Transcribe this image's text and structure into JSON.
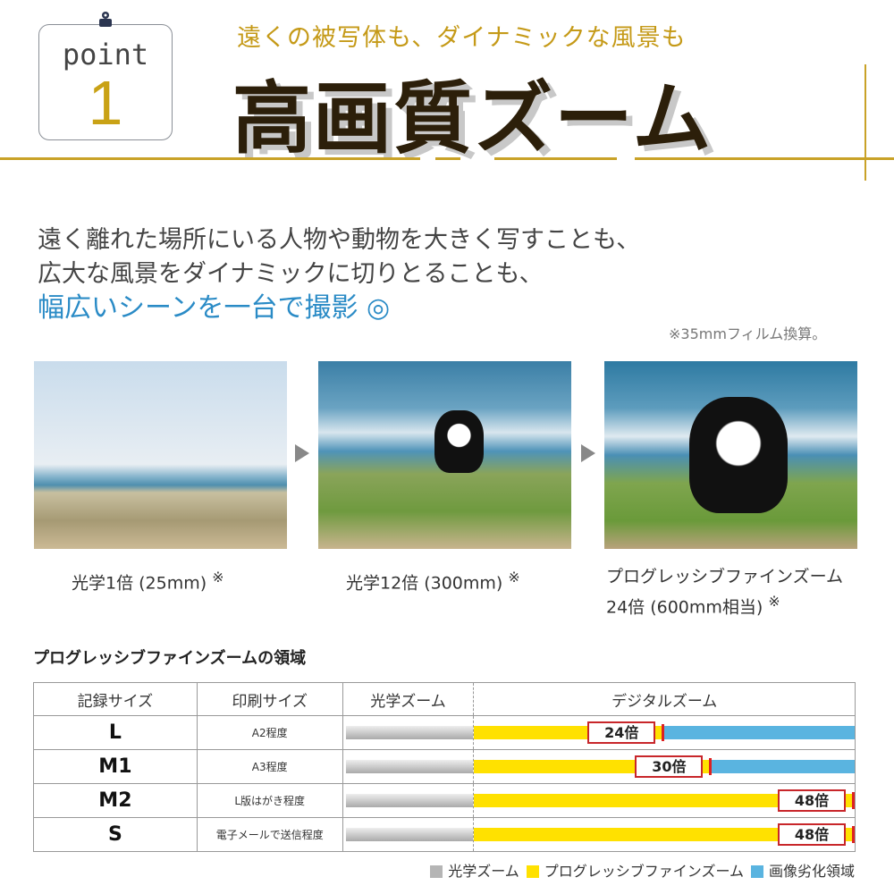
{
  "badge": {
    "label": "point",
    "number": "1"
  },
  "header": {
    "subtitle": "遠くの被写体も、ダイナミックな風景も",
    "title": "高画質ズーム"
  },
  "lead": {
    "line1": "遠く離れた場所にいる人物や動物を大きく写すことも、",
    "line2": "広大な風景をダイナミックに切りとることも、",
    "line3": "幅広いシーンを一台で撮影 ◎"
  },
  "note": "※35mmフィルム換算。",
  "photos": [
    {
      "caption": "光学1倍 (25mm)",
      "mark": "※"
    },
    {
      "caption": "光学12倍 (300mm)",
      "mark": "※"
    },
    {
      "caption": "プログレッシブファインズーム",
      "caption2": "24倍 (600mm相当)",
      "mark": "※"
    }
  ],
  "table": {
    "title": "プログレッシブファインズームの領域",
    "headers": [
      "記録サイズ",
      "印刷サイズ",
      "光学ズーム",
      "デジタルズーム"
    ],
    "max_zoom": 48,
    "rows": [
      {
        "size": "L",
        "print": "A2程度",
        "zoom": 24,
        "label": "24倍"
      },
      {
        "size": "M1",
        "print": "A3程度",
        "zoom": 30,
        "label": "30倍"
      },
      {
        "size": "M2",
        "print": "L版はがき程度",
        "zoom": 48,
        "label": "48倍"
      },
      {
        "size": "S",
        "print": "電子メールで送信程度",
        "zoom": 48,
        "label": "48倍"
      }
    ]
  },
  "legend": [
    {
      "label": "光学ズーム",
      "color": "#b5b5b5"
    },
    {
      "label": "プログレッシブファインズーム",
      "color": "#ffe100"
    },
    {
      "label": "画像劣化領域",
      "color": "#5ab4e0"
    }
  ],
  "colors": {
    "gold": "#c9a227",
    "accent_blue": "#2a8bc6",
    "marker_red": "#c8262a"
  }
}
